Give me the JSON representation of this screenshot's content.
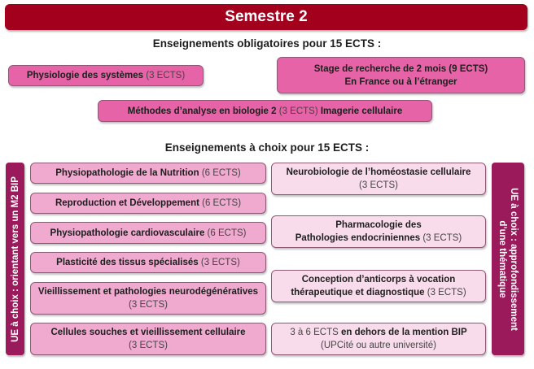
{
  "title": "Semestre 2",
  "mandatory": {
    "heading": "Enseignements obligatoires pour 15 ECTS :",
    "items": [
      {
        "name": "Physiologie des systèmes",
        "ects": "(3 ECTS)"
      },
      {
        "line1": "Stage de recherche de 2 mois (9 ECTS)",
        "line2": "En France ou à l’étranger"
      },
      {
        "name": "Méthodes d’analyse en biologie 2",
        "ects": "(3 ECTS)",
        "suffix": "Imagerie cellulaire"
      }
    ]
  },
  "elective": {
    "heading": "Enseignements à choix pour 15 ECTS :",
    "left_label": "UE à choix : orientant vers un M2 BIP",
    "right_label_line1": "UE à choix : approfondissement",
    "right_label_line2": "d’une thématique",
    "left_items": [
      {
        "name": "Physiopathologie de la Nutrition",
        "ects": "(6 ECTS)"
      },
      {
        "name": "Reproduction et Développement",
        "ects": "(6 ECTS)"
      },
      {
        "name": "Physiopathologie cardiovasculaire",
        "ects": "(6 ECTS)"
      },
      {
        "name": "Plasticité des tissus spécialisés",
        "ects": "(3 ECTS)"
      },
      {
        "name": "Vieillissement et pathologies neurodégénératives",
        "ects": "(3 ECTS)"
      },
      {
        "name": "Cellules souches et vieillissement cellulaire",
        "ects": "(3 ECTS)"
      }
    ],
    "right_items": [
      {
        "name": "Neurobiologie de l’homéostasie cellulaire",
        "ects": "(3 ECTS)"
      },
      {
        "name1": "Pharmacologie des",
        "name2": "Pathologies endocriniennes",
        "ects": "(3 ECTS)"
      },
      {
        "name1": "Conception d’anticorps à vocation",
        "name2": "thérapeutique et diagnostique",
        "ects": "(3 ECTS)"
      },
      {
        "prefix": "3 à 6 ECTS",
        "name": "en dehors de la mention BIP",
        "note": "(UPCité ou autre université)"
      }
    ]
  },
  "colors": {
    "header": "#a3001e",
    "mandatory_box": "#e563a6",
    "left_box": "#f0a9cf",
    "right_box": "#f9dcec",
    "side_label": "#9b1a5b"
  }
}
